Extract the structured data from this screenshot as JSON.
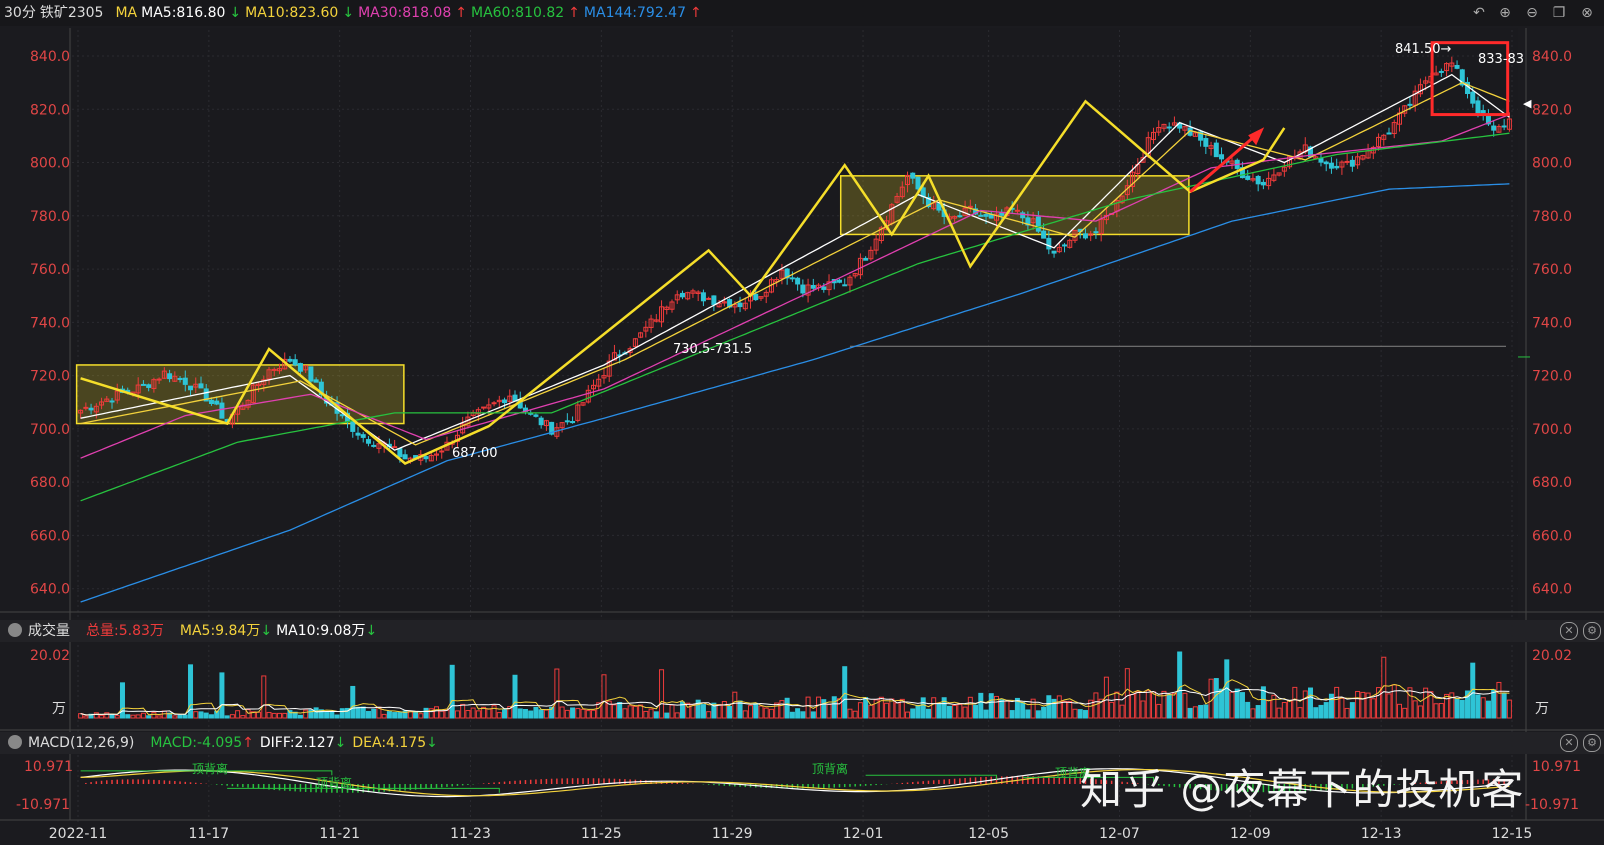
{
  "header": {
    "timeframe": "30分",
    "symbol": "铁矿2305",
    "ma_label": "MA",
    "ma5": "MA5:816.80",
    "ma10": "MA10:823.60",
    "ma30": "MA30:818.08",
    "ma60": "MA60:810.82",
    "ma144": "MA144:792.47",
    "arrow_up": "↑",
    "arrow_down": "↓"
  },
  "colors": {
    "up": "#ee3b3b",
    "down": "#2ec4d6",
    "ma5": "#ffffff",
    "ma10": "#f3d23c",
    "ma30": "#e040b0",
    "ma60": "#27c23f",
    "ma144": "#2a8ee6",
    "axis_text": "#e04646",
    "pattern": "#f5de2a",
    "highlight": "#ff2a2a"
  },
  "icons": [
    "back-icon",
    "zoom-in-icon",
    "zoom-out-icon",
    "window-icon",
    "close-icon"
  ],
  "main_chart": {
    "y_ticks": [
      "840.0",
      "820.0",
      "800.0",
      "780.0",
      "760.0",
      "740.0",
      "720.0",
      "700.0",
      "680.0",
      "660.0",
      "640.0"
    ],
    "annotation_low": "687.00",
    "annotation_mid": "730.5-731.5",
    "annotation_high": "841.50→",
    "annotation_high_right": "833-83"
  },
  "volume_panel": {
    "title": "成交量",
    "total": "总量:5.83万",
    "ma5": "MA5:9.84万",
    "ma10": "MA10:9.08万",
    "max_label": "20.02",
    "unit_label": "万"
  },
  "macd_panel": {
    "title": "MACD(12,26,9)",
    "macd": "MACD:-4.095",
    "diff": "DIFF:2.127",
    "dea": "DEA:4.175",
    "top_label": "10.971",
    "bottom_label": "-10.971",
    "divergence_label": "顶背离"
  },
  "x_axis": {
    "labels": [
      "2022-11",
      "11-17",
      "11-21",
      "11-23",
      "11-25",
      "11-29",
      "12-01",
      "12-05",
      "12-07",
      "12-09",
      "12-13",
      "12-15"
    ]
  },
  "watermark": "知乎 @夜幕下的投机客",
  "chart_data": {
    "type": "line",
    "price_ylim": [
      632,
      846
    ],
    "volume_ylim": [
      0,
      20.02
    ],
    "macd_ylim": [
      -10.971,
      10.971
    ],
    "price_path": [
      [
        0,
        707
      ],
      [
        6,
        712
      ],
      [
        12,
        716
      ],
      [
        16,
        721
      ],
      [
        20,
        718
      ],
      [
        24,
        712
      ],
      [
        28,
        703
      ],
      [
        32,
        712
      ],
      [
        36,
        722
      ],
      [
        40,
        726
      ],
      [
        43,
        722
      ],
      [
        46,
        713
      ],
      [
        50,
        704
      ],
      [
        54,
        697
      ],
      [
        58,
        694
      ],
      [
        62,
        689
      ],
      [
        66,
        689
      ],
      [
        70,
        694
      ],
      [
        74,
        703
      ],
      [
        78,
        708
      ],
      [
        82,
        713
      ],
      [
        86,
        705
      ],
      [
        90,
        700
      ],
      [
        94,
        704
      ],
      [
        98,
        716
      ],
      [
        102,
        727
      ],
      [
        106,
        733
      ],
      [
        110,
        742
      ],
      [
        114,
        752
      ],
      [
        118,
        750
      ],
      [
        122,
        748
      ],
      [
        126,
        747
      ],
      [
        130,
        751
      ],
      [
        134,
        760
      ],
      [
        138,
        753
      ],
      [
        142,
        753
      ],
      [
        146,
        755
      ],
      [
        150,
        765
      ],
      [
        154,
        780
      ],
      [
        158,
        795
      ],
      [
        162,
        785
      ],
      [
        166,
        778
      ],
      [
        170,
        782
      ],
      [
        174,
        778
      ],
      [
        178,
        782
      ],
      [
        182,
        777
      ],
      [
        186,
        765
      ],
      [
        190,
        773
      ],
      [
        194,
        774
      ],
      [
        198,
        785
      ],
      [
        202,
        800
      ],
      [
        206,
        815
      ],
      [
        210,
        814
      ],
      [
        214,
        808
      ],
      [
        218,
        802
      ],
      [
        222,
        796
      ],
      [
        226,
        792
      ],
      [
        230,
        800
      ],
      [
        234,
        805
      ],
      [
        238,
        800
      ],
      [
        242,
        799
      ],
      [
        246,
        805
      ],
      [
        250,
        812
      ],
      [
        254,
        822
      ],
      [
        258,
        834
      ],
      [
        262,
        837
      ],
      [
        266,
        823
      ],
      [
        270,
        811
      ],
      [
        273,
        816
      ]
    ],
    "ma_series": [
      {
        "name": "MA5",
        "values": [
          [
            0,
            704
          ],
          [
            40,
            720
          ],
          [
            60,
            692
          ],
          [
            100,
            724
          ],
          [
            160,
            788
          ],
          [
            186,
            768
          ],
          [
            210,
            815
          ],
          [
            230,
            800
          ],
          [
            262,
            833
          ],
          [
            273,
            817
          ]
        ]
      },
      {
        "name": "MA10",
        "values": [
          [
            0,
            702
          ],
          [
            42,
            718
          ],
          [
            64,
            694
          ],
          [
            104,
            726
          ],
          [
            164,
            786
          ],
          [
            190,
            772
          ],
          [
            212,
            812
          ],
          [
            234,
            801
          ],
          [
            264,
            830
          ],
          [
            273,
            823
          ]
        ]
      },
      {
        "name": "MA30",
        "values": [
          [
            0,
            689
          ],
          [
            20,
            705
          ],
          [
            44,
            713
          ],
          [
            66,
            696
          ],
          [
            100,
            715
          ],
          [
            140,
            752
          ],
          [
            172,
            782
          ],
          [
            194,
            778
          ],
          [
            216,
            798
          ],
          [
            236,
            803
          ],
          [
            260,
            808
          ],
          [
            273,
            818
          ]
        ]
      },
      {
        "name": "MA60",
        "values": [
          [
            0,
            673
          ],
          [
            30,
            695
          ],
          [
            60,
            706
          ],
          [
            90,
            706
          ],
          [
            120,
            730
          ],
          [
            160,
            762
          ],
          [
            200,
            786
          ],
          [
            240,
            803
          ],
          [
            273,
            811
          ]
        ]
      },
      {
        "name": "MA144",
        "values": [
          [
            0,
            635
          ],
          [
            40,
            662
          ],
          [
            70,
            688
          ],
          [
            100,
            704
          ],
          [
            140,
            726
          ],
          [
            180,
            751
          ],
          [
            220,
            778
          ],
          [
            250,
            790
          ],
          [
            273,
            792
          ]
        ]
      }
    ],
    "pattern_lines": [
      [
        [
          0,
          719
        ],
        [
          28,
          702
        ],
        [
          36,
          730
        ],
        [
          62,
          687
        ],
        [
          78,
          701
        ],
        [
          120,
          767
        ],
        [
          128,
          750
        ],
        [
          146,
          799
        ],
        [
          155,
          773
        ],
        [
          162,
          795
        ],
        [
          170,
          761
        ],
        [
          192,
          823
        ],
        [
          212,
          789
        ],
        [
          226,
          801
        ],
        [
          230,
          813
        ]
      ],
      [
        [
          212,
          789
        ],
        [
          225,
          811
        ]
      ]
    ],
    "zones": [
      {
        "x": [
          0,
          61
        ],
        "y": [
          702,
          724
        ]
      },
      {
        "x": [
          146,
          211
        ],
        "y": [
          773,
          795
        ]
      }
    ]
  }
}
